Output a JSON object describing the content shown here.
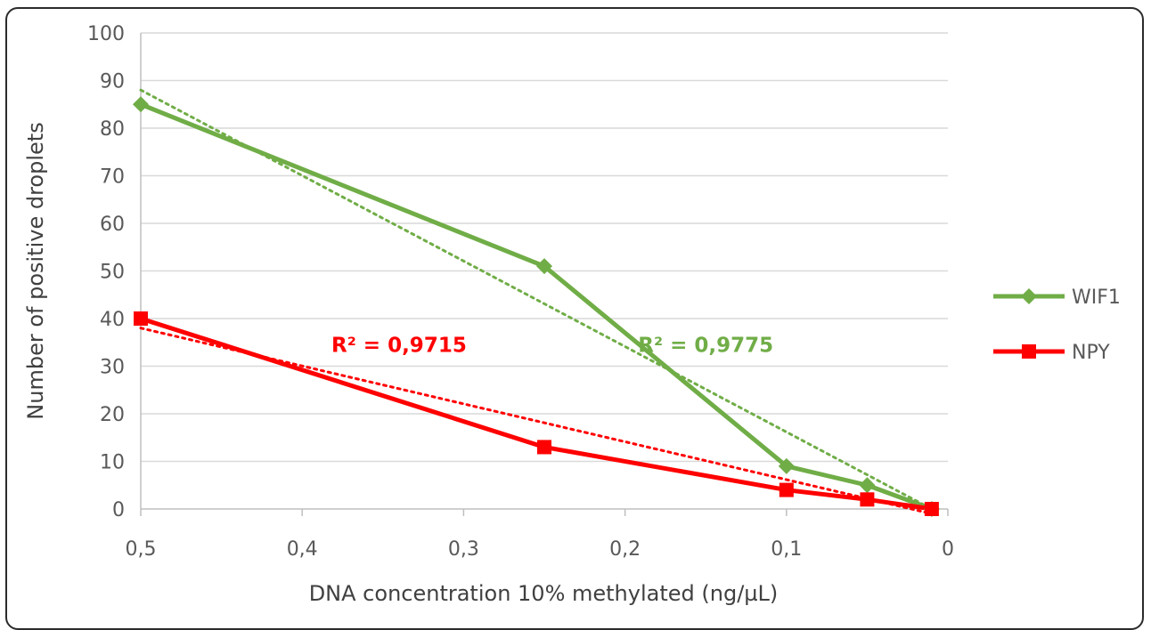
{
  "chart_data": {
    "type": "line",
    "xlabel": "DNA concentration 10% methylated (ng/µL)",
    "ylabel": "Number of positive droplets",
    "xlim": [
      0.5,
      0
    ],
    "ylim": [
      0,
      100
    ],
    "x_reversed": true,
    "grid": true,
    "legend_position": "right",
    "x_ticks": [
      0.5,
      0.4,
      0.3,
      0.2,
      0.1,
      0
    ],
    "x_tick_labels": [
      "0,5",
      "0,4",
      "0,3",
      "0,2",
      "0,1",
      "0"
    ],
    "y_ticks": [
      0,
      10,
      20,
      30,
      40,
      50,
      60,
      70,
      80,
      90,
      100
    ],
    "y_tick_labels": [
      "0",
      "10",
      "20",
      "30",
      "40",
      "50",
      "60",
      "70",
      "80",
      "90",
      "100"
    ],
    "series": [
      {
        "name": "WIF1",
        "color": "#70ad47",
        "marker": "diamond",
        "x": [
          0.5,
          0.25,
          0.1,
          0.05,
          0.01
        ],
        "y": [
          85,
          51,
          9,
          5,
          0
        ],
        "trendline": {
          "style": "dotted",
          "r_squared_label": "R² = 0,9775",
          "x": [
            0.5,
            0.01
          ],
          "y": [
            88,
            0
          ]
        }
      },
      {
        "name": "NPY",
        "color": "#ff0000",
        "marker": "square",
        "x": [
          0.5,
          0.25,
          0.1,
          0.05,
          0.01
        ],
        "y": [
          40,
          13,
          4,
          2,
          0
        ],
        "trendline": {
          "style": "dotted",
          "r_squared_label": "R² = 0,9715",
          "x": [
            0.5,
            0.01
          ],
          "y": [
            38,
            -1
          ]
        }
      }
    ]
  }
}
